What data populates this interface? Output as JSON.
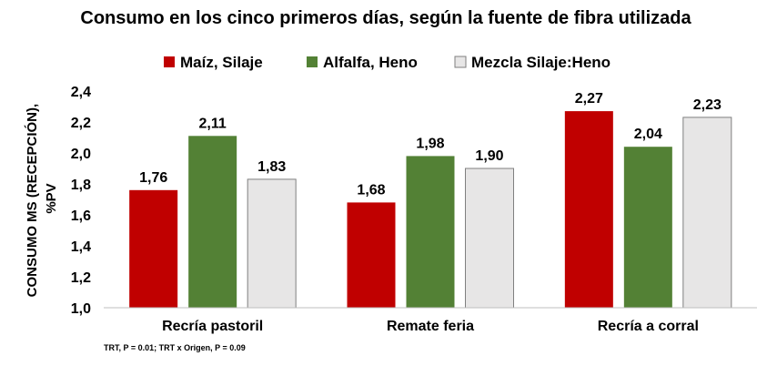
{
  "chart_data": {
    "type": "bar",
    "title": "Consumo en los cinco primeros días, según la fuente de fibra utilizada",
    "ylabel_line1": "CONSUMO MS (RECEPCIÓN),",
    "ylabel_line2": "%PV",
    "xlabel": "",
    "ylim": [
      1.0,
      2.4
    ],
    "yticks": [
      "1,0",
      "1,2",
      "1,4",
      "1,6",
      "1,8",
      "2,0",
      "2,2",
      "2,4"
    ],
    "ytick_values": [
      1.0,
      1.2,
      1.4,
      1.6,
      1.8,
      2.0,
      2.2,
      2.4
    ],
    "categories": [
      "Recría pastoril",
      "Remate feria",
      "Recría a corral"
    ],
    "series": [
      {
        "name": "Maíz, Silaje",
        "color": "#c00000",
        "values": [
          1.76,
          1.68,
          2.27
        ],
        "labels": [
          "1,76",
          "1,68",
          "2,27"
        ]
      },
      {
        "name": "Alfalfa, Heno",
        "color": "#538135",
        "values": [
          2.11,
          1.98,
          2.04
        ],
        "labels": [
          "2,11",
          "1,98",
          "2,04"
        ]
      },
      {
        "name": "Mezcla Silaje:Heno",
        "color": "#e7e6e6",
        "values": [
          1.83,
          1.9,
          2.23
        ],
        "labels": [
          "1,83",
          "1,90",
          "2,23"
        ]
      }
    ],
    "legend_position": "top",
    "grid": false,
    "footnote": "TRT, P = 0.01; TRT x Origen, P = 0.09"
  }
}
